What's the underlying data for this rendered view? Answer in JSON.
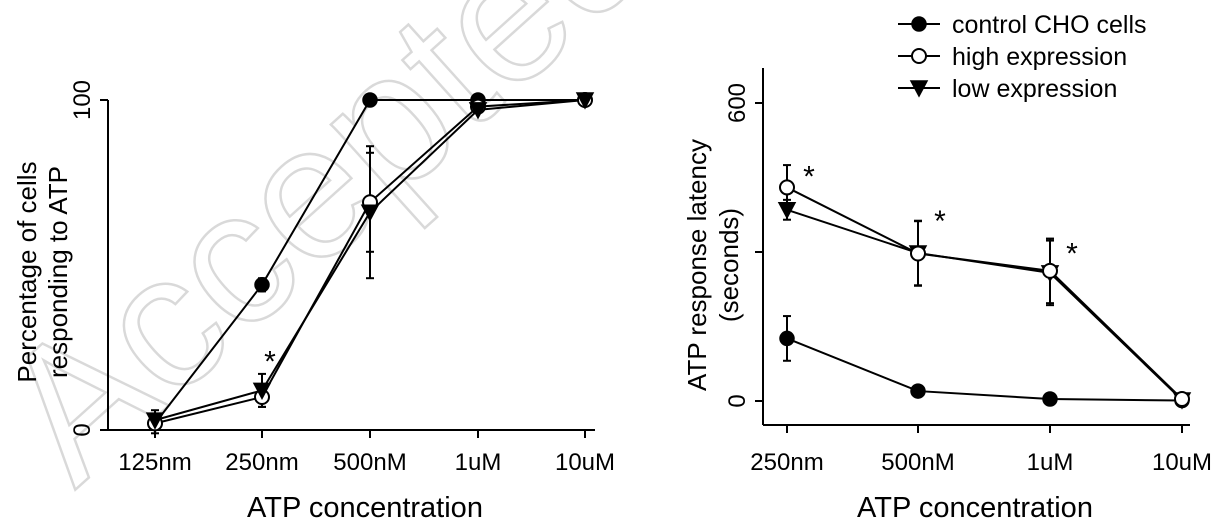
{
  "watermark": "Accepted",
  "chart_data": [
    {
      "type": "line",
      "categories": [
        "125nm",
        "250nm",
        "500nM",
        "1uM",
        "10uM"
      ],
      "xlabel": "ATP concentration",
      "ylabel_lines": [
        "Percentage of cells",
        "responding  to ATP"
      ],
      "ylim": [
        0,
        100
      ],
      "yticks": [
        0,
        100
      ],
      "series": [
        {
          "marker": "filled-circle",
          "values": [
            2,
            44,
            100,
            100,
            100
          ],
          "err": [
            2,
            2,
            0,
            0,
            0
          ]
        },
        {
          "marker": "open-circle",
          "values": [
            2,
            10,
            69,
            98,
            100
          ],
          "err": [
            3,
            3,
            15,
            0,
            0
          ]
        },
        {
          "marker": "filled-triangle",
          "values": [
            3,
            12,
            66,
            97,
            100
          ],
          "err": [
            3,
            5,
            20,
            0,
            0
          ]
        }
      ],
      "annotations": [
        {
          "text": "*",
          "category": "250nm",
          "y": 22
        }
      ]
    },
    {
      "type": "line",
      "categories": [
        "250nm",
        "500nM",
        "1uM",
        "10uM"
      ],
      "xlabel": "ATP concentration",
      "ylabel_lines": [
        "ATP response latency",
        "(seconds)"
      ],
      "ylim": [
        0,
        640
      ],
      "yticks": [
        0,
        300,
        600
      ],
      "ytick_labels": [
        "0",
        "",
        "600"
      ],
      "series": [
        {
          "name": "control CHO cells",
          "marker": "filled-circle",
          "values": [
            126,
            20,
            4,
            1
          ],
          "err": [
            45,
            0,
            0,
            0
          ]
        },
        {
          "name": "high expression",
          "marker": "open-circle",
          "values": [
            430,
            297,
            262,
            4
          ],
          "err": [
            45,
            65,
            65,
            0
          ]
        },
        {
          "name": "low expression",
          "marker": "filled-triangle",
          "values": [
            385,
            298,
            258,
            2
          ],
          "err": [
            20,
            65,
            65,
            0
          ]
        }
      ],
      "annotations": [
        {
          "text": "*",
          "category": "250nm",
          "y": 460
        },
        {
          "text": "*",
          "category": "500nM",
          "y": 370
        },
        {
          "text": "*",
          "category": "1uM",
          "y": 305
        }
      ],
      "legend": "top"
    }
  ]
}
